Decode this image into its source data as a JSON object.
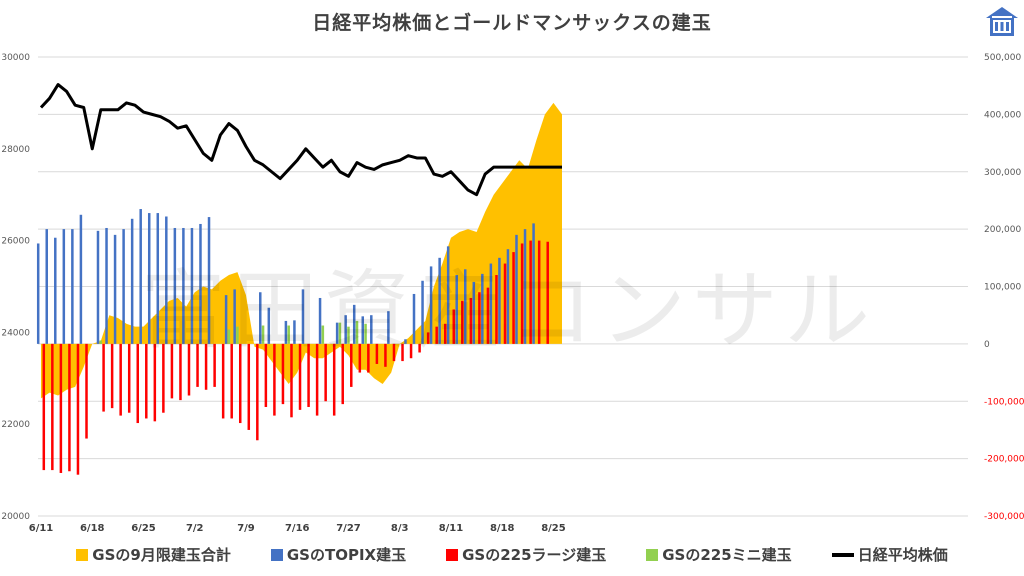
{
  "title": "日経平均株価とゴールドマンサックスの建玉",
  "watermark_text": "富田資産コンサル",
  "colors": {
    "area": "#FFC000",
    "topix": "#4472C4",
    "large225": "#FF0000",
    "mini225": "#92D050",
    "nikkei": "#000000",
    "negative_tick": "#FF0000"
  },
  "legend": {
    "area": "GSの9月限建玉合計",
    "topix": "GSのTOPIX建玉",
    "large225": "GSの225ラージ建玉",
    "mini225": "GSの225ミニ建玉",
    "nikkei": "日経平均株価"
  },
  "chart_data": {
    "type": "bar",
    "title": "日経平均株価とゴールドマンサックスの建玉",
    "x_ticks": [
      "6/11",
      "6/18",
      "6/25",
      "7/2",
      "7/9",
      "7/16",
      "7/27",
      "8/3",
      "8/11",
      "8/18",
      "8/25"
    ],
    "left_axis": {
      "min": 20000,
      "max": 30000,
      "ticks": [
        "20000",
        "22000",
        "24000",
        "26000",
        "28000",
        "30000"
      ]
    },
    "right_axis": {
      "min": -300000,
      "max": 500000,
      "ticks": [
        "-300,000",
        "-200,000",
        "-100,000",
        "0",
        "100,000",
        "200,000",
        "300,000",
        "400,000",
        "500,000"
      ]
    },
    "grid": true,
    "legend_position": "bottom",
    "series": [
      {
        "name": "GSの9月限建玉合計",
        "kind": "area",
        "axis": "right",
        "values": [
          -95000,
          -85000,
          -90000,
          -80000,
          -75000,
          -40000,
          0,
          5000,
          50000,
          45000,
          35000,
          30000,
          30000,
          45000,
          60000,
          75000,
          80000,
          65000,
          90000,
          100000,
          95000,
          110000,
          120000,
          125000,
          85000,
          -5000,
          -10000,
          -30000,
          -50000,
          -70000,
          -50000,
          -15000,
          -25000,
          -25000,
          -15000,
          -5000,
          -20000,
          -45000,
          -45000,
          -60000,
          -70000,
          -50000,
          0,
          10000,
          25000,
          40000,
          100000,
          140000,
          185000,
          195000,
          200000,
          195000,
          230000,
          260000,
          280000,
          300000,
          320000,
          305000,
          355000,
          400000,
          420000,
          400000
        ]
      },
      {
        "name": "GSのTOPIX建玉",
        "kind": "bar",
        "axis": "right",
        "offset": -2.8,
        "values": [
          175000,
          200000,
          185000,
          200000,
          200000,
          225000,
          0,
          197000,
          202000,
          190000,
          200000,
          218000,
          235000,
          228000,
          228000,
          222000,
          202000,
          202000,
          202000,
          209000,
          221000,
          0,
          85000,
          95000,
          0,
          0,
          90000,
          63000,
          0,
          40000,
          41000,
          95000,
          0,
          80000,
          0,
          37000,
          50000,
          68000,
          48000,
          50000,
          0,
          57000,
          0,
          8000,
          87000,
          110000,
          135000,
          150000,
          170000,
          120000,
          130000,
          108000,
          122000,
          140000,
          150000,
          165000,
          190000,
          200000,
          210000,
          0,
          0,
          0
        ]
      },
      {
        "name": "GSの225ミニ建玉",
        "kind": "bar",
        "axis": "right",
        "offset": 0,
        "values": [
          0,
          0,
          0,
          0,
          0,
          0,
          0,
          6000,
          0,
          0,
          0,
          0,
          0,
          0,
          0,
          0,
          0,
          0,
          0,
          0,
          0,
          0,
          25000,
          30000,
          0,
          0,
          32000,
          0,
          0,
          32000,
          0,
          0,
          0,
          32000,
          0,
          37000,
          30000,
          40000,
          35000,
          0,
          0,
          0,
          0,
          0,
          0,
          0,
          0,
          0,
          0,
          0,
          0,
          0,
          0,
          0,
          0,
          0,
          0,
          0,
          0,
          0,
          0,
          0
        ]
      },
      {
        "name": "GSの225ラージ建玉",
        "kind": "bar",
        "axis": "right",
        "offset": 2.8,
        "values": [
          -220000,
          -220000,
          -225000,
          -222000,
          -228000,
          -165000,
          0,
          -118000,
          -112000,
          -125000,
          -120000,
          -138000,
          -130000,
          -135000,
          -120000,
          -95000,
          -98000,
          -90000,
          -75000,
          -80000,
          -75000,
          -130000,
          -130000,
          -138000,
          -150000,
          -168000,
          -110000,
          -125000,
          -105000,
          -128000,
          -115000,
          -110000,
          -125000,
          -100000,
          -125000,
          -105000,
          -75000,
          -50000,
          -50000,
          -35000,
          -40000,
          -30000,
          -30000,
          -25000,
          -15000,
          20000,
          30000,
          35000,
          60000,
          75000,
          80000,
          90000,
          98000,
          120000,
          140000,
          160000,
          175000,
          180000,
          180000,
          178000,
          0,
          0
        ]
      },
      {
        "name": "日経平均株価",
        "kind": "line",
        "axis": "left",
        "values": [
          28900,
          29100,
          29400,
          29250,
          28950,
          28900,
          28000,
          28850,
          28850,
          28850,
          29000,
          28950,
          28800,
          28750,
          28700,
          28600,
          28450,
          28500,
          28200,
          27900,
          27750,
          28300,
          28550,
          28400,
          28050,
          27750,
          27650,
          27500,
          27350,
          27550,
          27750,
          28000,
          27800,
          27600,
          27750,
          27500,
          27400,
          27700,
          27600,
          27550,
          27650,
          27700,
          27750,
          27850,
          27800,
          27800,
          27450,
          27400,
          27500,
          27300,
          27100,
          27000,
          27450,
          27600,
          27600,
          27600,
          27600,
          27600,
          27600,
          27600,
          27600,
          27600
        ]
      }
    ]
  }
}
